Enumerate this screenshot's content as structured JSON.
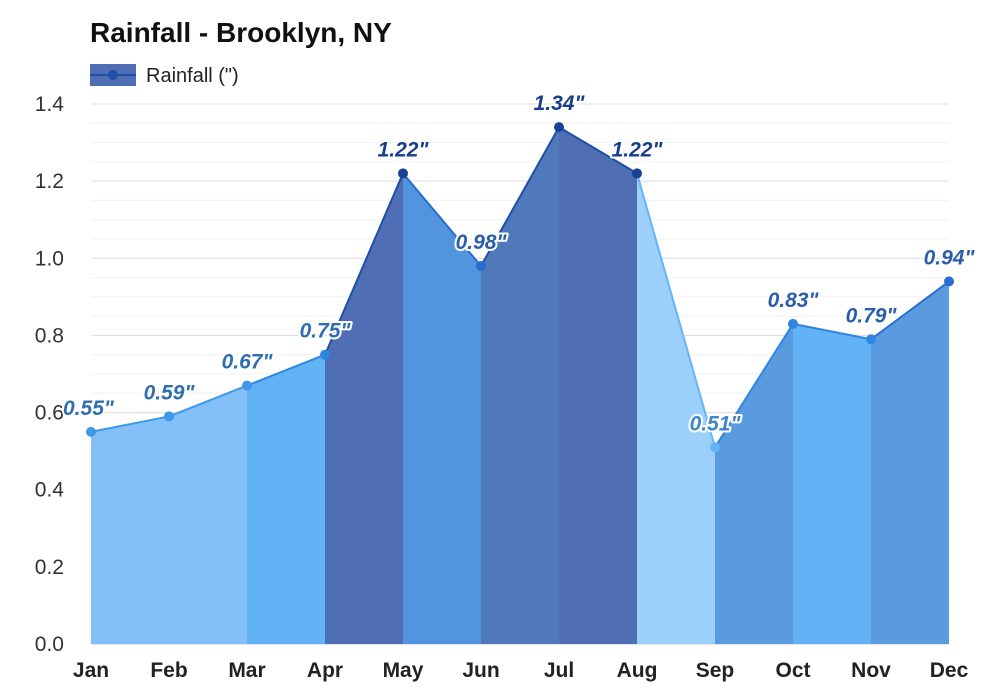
{
  "chart_data": {
    "type": "area",
    "title": "Rainfall - Brooklyn, NY",
    "legend": {
      "label": "Rainfall (\")",
      "placement": "top-left"
    },
    "categories": [
      "Jan",
      "Feb",
      "Mar",
      "Apr",
      "May",
      "Jun",
      "Jul",
      "Aug",
      "Sep",
      "Oct",
      "Nov",
      "Dec"
    ],
    "series": [
      {
        "name": "Rainfall (\")",
        "values": [
          0.55,
          0.59,
          0.67,
          0.75,
          1.22,
          0.98,
          1.34,
          1.22,
          0.51,
          0.83,
          0.79,
          0.94
        ],
        "labels": [
          "0.55\"",
          "0.59\"",
          "0.67\"",
          "0.75\"",
          "1.22\"",
          "0.98\"",
          "1.34\"",
          "1.22\"",
          "0.51\"",
          "0.83\"",
          "0.79\"",
          "0.94\""
        ]
      }
    ],
    "ylim": [
      0,
      1.4
    ],
    "yticks": [
      "0.0",
      "0.2",
      "0.4",
      "0.6",
      "0.8",
      "1.0",
      "1.2",
      "1.4"
    ],
    "grid": true,
    "colors": {
      "segment_fills": [
        "#82c0f7",
        "#82c0f7",
        "#62b3f5",
        "#4f6eb3",
        "#5394de",
        "#5079bc",
        "#4f6eb3",
        "#9dcffb",
        "#5a9be0",
        "#62b3f5",
        "#5a9be0"
      ],
      "segment_lines": [
        "#3f97e8",
        "#3f97e8",
        "#2e86e0",
        "#1f4fa8",
        "#2a6ccf",
        "#1f4fa8",
        "#1f4fa8",
        "#64b5f6",
        "#2e86e0",
        "#2e86e0",
        "#2a6ccf"
      ],
      "point_colors": [
        "#3f97e8",
        "#3f97e8",
        "#3f97e8",
        "#2e86e0",
        "#1a3f96",
        "#2a6ccf",
        "#1a3f96",
        "#1a3f96",
        "#64b5f6",
        "#2e86e0",
        "#2e86e0",
        "#2a6ccf"
      ],
      "label_colors": [
        "#2f6fb0",
        "#2f6fb0",
        "#2f6fb0",
        "#2f6fb0",
        "#173e8c",
        "#2a5fa8",
        "#173e8c",
        "#173e8c",
        "#3f86c8",
        "#2a5fa8",
        "#2a5fa8",
        "#2a5fa8"
      ],
      "legend_fill": "#4f6eb3",
      "legend_line": "#1f4fa8",
      "grid": "#e6e6e6",
      "axis": "#cccccc"
    }
  }
}
